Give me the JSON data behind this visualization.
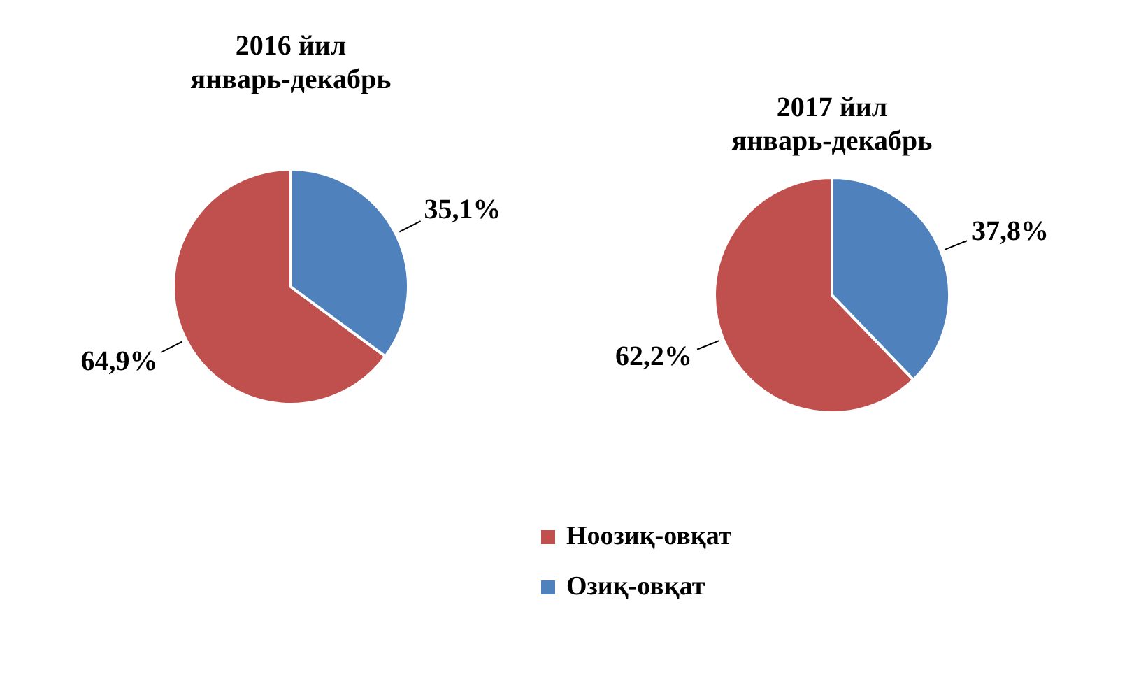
{
  "chart_data": [
    {
      "type": "pie",
      "title": "2016 йил\nянварь-декабрь",
      "categories": [
        "Ноозиқ-овқат",
        "Озиқ-овқат"
      ],
      "values": [
        64.9,
        35.1
      ],
      "colors": [
        "#c0504d",
        "#4f81bd"
      ],
      "value_labels": [
        "64,9%",
        "35,1%"
      ],
      "legend": "bottom"
    },
    {
      "type": "pie",
      "title": "2017 йил\nянварь-декабрь",
      "categories": [
        null,
        null
      ],
      "values": [
        62.2,
        37.8
      ],
      "colors": [
        "#c0504d",
        "#4f81bd"
      ],
      "value_labels": [
        "62,2%",
        "37,8%"
      ]
    }
  ]
}
